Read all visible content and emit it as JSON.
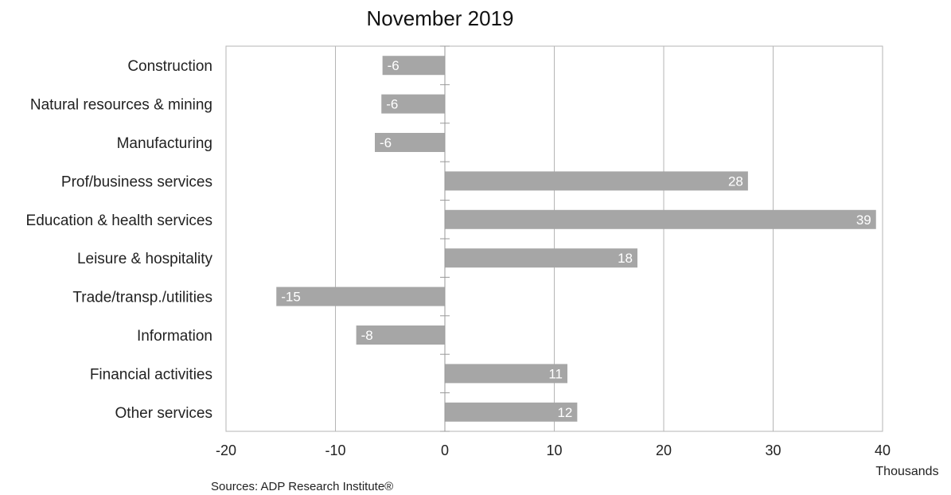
{
  "chart_data": {
    "type": "bar",
    "orientation": "horizontal",
    "title": "November 2019",
    "categories": [
      "Construction",
      "Natural resources & mining",
      "Manufacturing",
      "Prof/business services",
      "Education & health services",
      "Leisure & hospitality",
      "Trade/transp./utilities",
      "Information",
      "Financial activities",
      "Other services"
    ],
    "values": [
      -5.7,
      -5.8,
      -6.4,
      27.7,
      39.4,
      17.6,
      -15.4,
      -8.1,
      11.2,
      12.1
    ],
    "value_labels": [
      "-6",
      "-6",
      "-6",
      "28",
      "39",
      "18",
      "-15",
      "-8",
      "11",
      "12"
    ],
    "xlim": [
      -20,
      40
    ],
    "xticks": [
      -20,
      -10,
      0,
      10,
      20,
      30,
      40
    ],
    "unit_label": "Thousands",
    "source": "Sources: ADP Research Institute®",
    "grid": true,
    "bar_color": "#a6a6a6",
    "grid_color": "#b5b5b5"
  }
}
